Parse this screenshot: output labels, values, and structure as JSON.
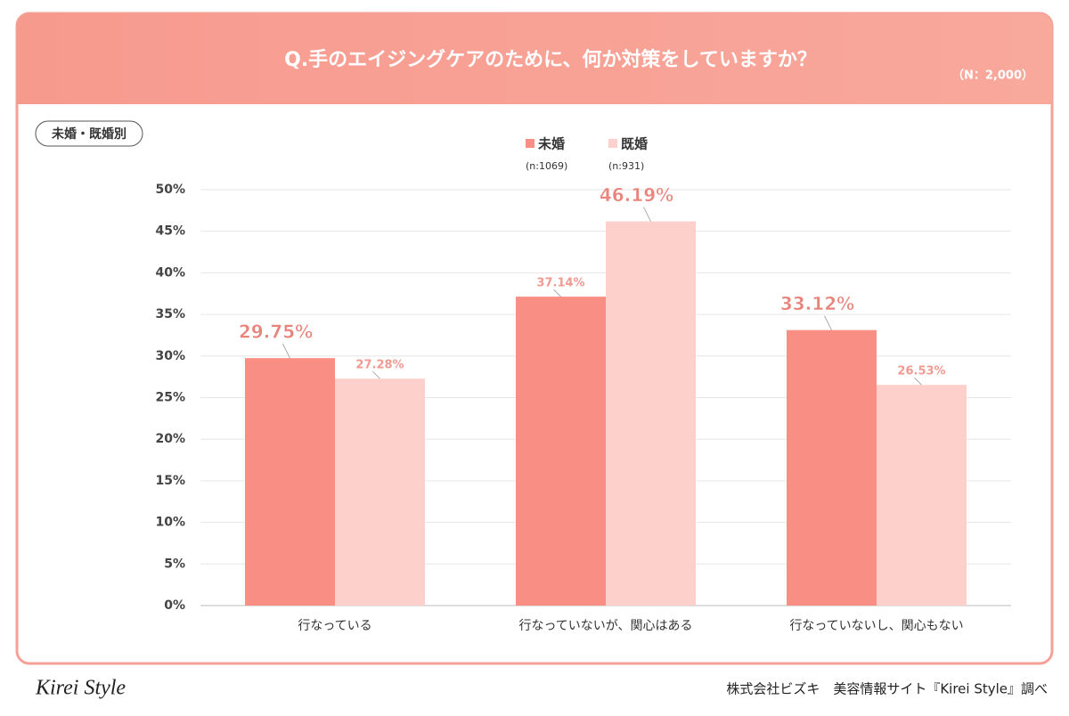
{
  "chart_data": {
    "type": "bar",
    "title": "Q.手のエイジングケアのために、何か対策をしていますか？",
    "note": "（N：2,000）",
    "badge": "未婚・既婚別",
    "categories": [
      "行なっている",
      "行なっていないが、関心はある",
      "行なっていないし、関心もない"
    ],
    "series": [
      {
        "name": "未婚",
        "sample": "(n:1069)",
        "color": "#f98e84",
        "values": [
          29.75,
          37.14,
          33.12
        ],
        "value_labels": [
          "29.75%",
          "37.14%",
          "33.12%"
        ]
      },
      {
        "name": "既婚",
        "sample": "(n:931)",
        "color": "#fdd0cc",
        "values": [
          27.28,
          46.19,
          26.53
        ],
        "value_labels": [
          "27.28%",
          "46.19%",
          "26.53%"
        ]
      }
    ],
    "ylim": [
      0,
      50
    ],
    "yticks": [
      {
        "value": 0,
        "label": "0%"
      },
      {
        "value": 5,
        "label": "5%"
      },
      {
        "value": 10,
        "label": "10%"
      },
      {
        "value": 15,
        "label": "15%"
      },
      {
        "value": 20,
        "label": "20%"
      },
      {
        "value": 25,
        "label": "25%"
      },
      {
        "value": 30,
        "label": "30%"
      },
      {
        "value": 35,
        "label": "35%"
      },
      {
        "value": 40,
        "label": "40%"
      },
      {
        "value": 45,
        "label": "45%"
      },
      {
        "value": 50,
        "label": "50%"
      }
    ],
    "grid": true,
    "logo": "Kirei Style",
    "source": "株式会社ビズキ　美容情報サイト『Kirei Style』調べ"
  }
}
